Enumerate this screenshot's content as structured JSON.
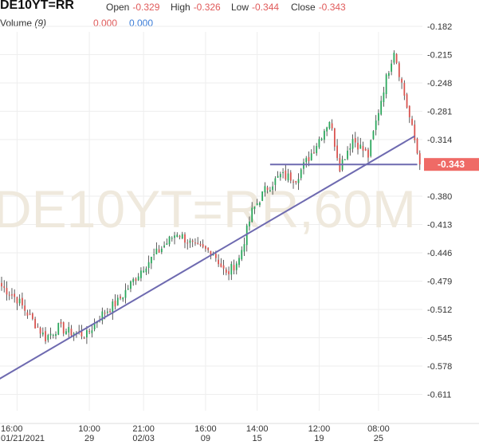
{
  "header": {
    "symbol": "DE10YT=RR",
    "open_label": "Open",
    "open_value": "-0.329",
    "high_label": "High",
    "high_value": "-0.326",
    "low_label": "Low",
    "low_value": "-0.344",
    "close_label": "Close",
    "close_value": "-0.343",
    "volume_label": "Volume",
    "volume_period": "(9)",
    "volume_value_1": "0.000",
    "volume_value_2": "0.000"
  },
  "colors": {
    "up": "#2aa65b",
    "down": "#d9534f",
    "trendline": "#6e6ab0",
    "last_price_bg": "#ef6a66",
    "watermark": "#efe9dd",
    "grid": "#eeeeee"
  },
  "chart_data": {
    "type": "candlestick",
    "watermark": "DE10YT=RR,60M",
    "y_ticks": [
      "-0.182",
      "-0.215",
      "-0.248",
      "-0.281",
      "-0.314",
      "-0.380",
      "-0.413",
      "-0.446",
      "-0.479",
      "-0.512",
      "-0.545",
      "-0.578",
      "-0.611"
    ],
    "ylim": [
      -0.633,
      -0.168
    ],
    "last_price": -0.343,
    "last_price_label": "-0.343",
    "x_ticks": [
      {
        "time": "16:00",
        "date": "01/21/2021"
      },
      {
        "time": "10:00",
        "date": "29"
      },
      {
        "time": "21:00",
        "date": "02/03"
      },
      {
        "time": "16:00",
        "date": "09"
      },
      {
        "time": "14:00",
        "date": "15"
      },
      {
        "time": "12:00",
        "date": "19"
      },
      {
        "time": "08:00",
        "date": "25"
      }
    ],
    "x_tick_bar_index": [
      6,
      34,
      55,
      79,
      99,
      123,
      146
    ],
    "bar_count": 163,
    "close_path_bar_index": [
      0,
      6,
      12,
      17,
      22,
      26,
      33,
      38,
      45,
      55,
      68,
      75,
      82,
      87,
      92,
      97,
      102,
      108,
      114,
      120,
      127,
      131,
      136,
      142,
      148,
      152,
      156,
      160,
      162
    ],
    "close_path_values": [
      -0.485,
      -0.5,
      -0.525,
      -0.545,
      -0.533,
      -0.538,
      -0.542,
      -0.52,
      -0.503,
      -0.462,
      -0.422,
      -0.44,
      -0.445,
      -0.472,
      -0.453,
      -0.398,
      -0.373,
      -0.356,
      -0.359,
      -0.33,
      -0.291,
      -0.345,
      -0.313,
      -0.333,
      -0.254,
      -0.209,
      -0.262,
      -0.315,
      -0.343
    ],
    "trendlines": [
      {
        "from_bar": -2,
        "from_value": -0.595,
        "to_bar": 160,
        "to_value": -0.31
      },
      {
        "from_bar": 104,
        "from_value": -0.343,
        "to_bar": 161,
        "to_value": -0.343
      }
    ]
  }
}
